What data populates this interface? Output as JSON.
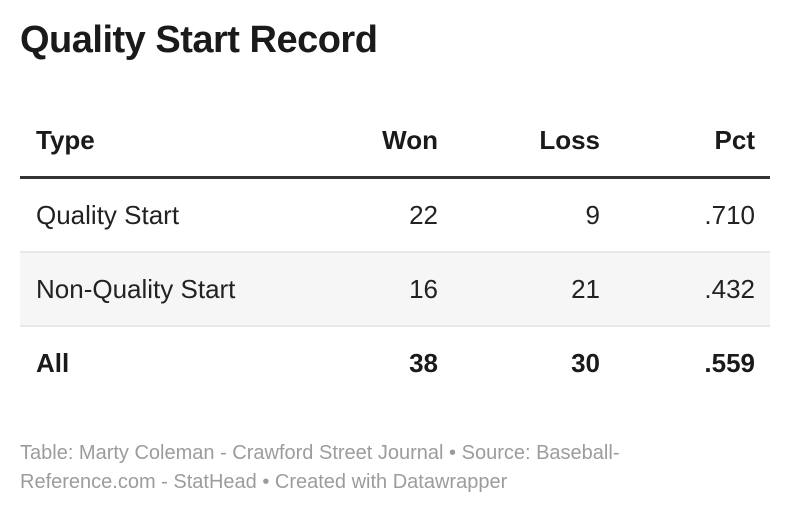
{
  "title": "Quality Start Record",
  "chart_data": {
    "type": "table",
    "title": "Quality Start Record",
    "columns": [
      "Type",
      "Won",
      "Loss",
      "Pct"
    ],
    "rows": [
      [
        "Quality Start",
        22,
        9,
        ".710"
      ],
      [
        "Non-Quality Start",
        16,
        21,
        ".432"
      ],
      [
        "All",
        38,
        30,
        ".559"
      ]
    ],
    "row_styles": [
      "plain",
      "shaded",
      "bold-total"
    ],
    "footnote": "Table: Marty Coleman - Crawford Street Journal • Source: Baseball-Reference.com - StatHead • Created with Datawrapper"
  },
  "colors": {
    "background": "#ffffff",
    "title_text": "#1a1a1a",
    "body_text": "#222222",
    "header_rule": "#333333",
    "row_divider": "#e8e8e8",
    "shaded_row_bg": "#f6f6f6",
    "footnote_text": "#9c9c9c"
  }
}
